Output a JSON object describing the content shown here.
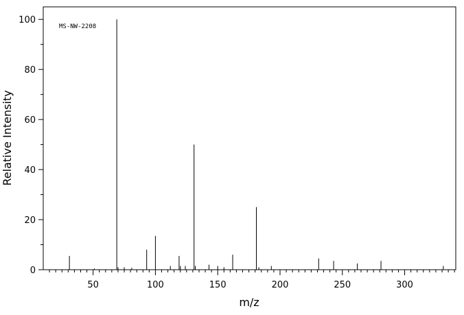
{
  "chart_data": {
    "type": "stem",
    "annotation": "MS-NW-2208",
    "x_label": "m/z",
    "y_label": "Relative Intensity",
    "color": "#000000",
    "x": [
      31,
      51,
      69,
      70,
      75,
      81,
      93,
      100,
      112,
      119,
      120,
      124,
      131,
      132,
      143,
      150,
      155,
      162,
      181,
      183,
      193,
      231,
      243,
      262,
      281,
      331
    ],
    "values": [
      5.5,
      0.5,
      100,
      1,
      1,
      0.8,
      8,
      13.5,
      1.5,
      5.5,
      1.5,
      1.5,
      50,
      1.5,
      2,
      1.5,
      1,
      6,
      25,
      1,
      1.5,
      4.5,
      3.5,
      2.5,
      3.5,
      1.5
    ],
    "xlim": [
      10,
      341
    ],
    "ylim": [
      0,
      105
    ],
    "xticks": [
      50,
      100,
      150,
      200,
      250,
      300
    ],
    "yticks": [
      0,
      20,
      40,
      60,
      80,
      100
    ],
    "xminorticks": [
      15,
      20,
      25,
      30,
      35,
      40,
      45,
      55,
      60,
      65,
      70,
      75,
      80,
      85,
      90,
      95,
      105,
      110,
      115,
      120,
      125,
      130,
      135,
      140,
      145,
      155,
      160,
      165,
      170,
      175,
      180,
      185,
      190,
      195,
      205,
      210,
      215,
      220,
      225,
      230,
      235,
      240,
      245,
      255,
      260,
      265,
      270,
      275,
      280,
      285,
      290,
      295,
      305,
      310,
      315,
      320,
      325,
      330,
      335,
      340
    ],
    "yminorticks": [
      10,
      30,
      50,
      70,
      90
    ]
  }
}
